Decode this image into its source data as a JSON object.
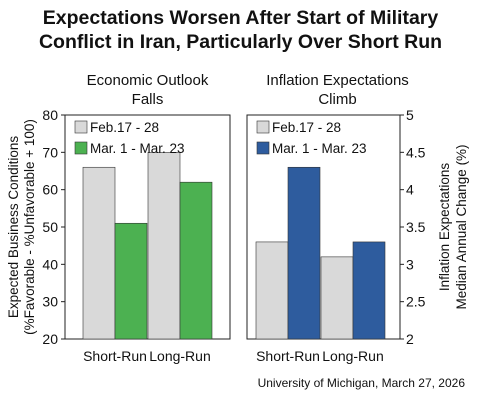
{
  "title_line1": "Expectations Worsen After Start of Military",
  "title_line2": "Conflict in Iran, Particularly Over Short Run",
  "source": "University of Michigan, March 27, 2026",
  "chart_data": [
    {
      "type": "bar",
      "title_line1": "Economic Outlook",
      "title_line2": "Falls",
      "ylabel_line1": "Expected Business Conditions",
      "ylabel_line2": "(%Favorable - %Unfavorable + 100)",
      "ylim": [
        20,
        80
      ],
      "yticks": [
        20,
        30,
        40,
        50,
        60,
        70,
        80
      ],
      "categories": [
        "Short-Run",
        "Long-Run"
      ],
      "legend_position": "top-left",
      "series": [
        {
          "name": "Feb.17 - 28",
          "color": "#d9d9d9",
          "values": [
            66,
            70
          ]
        },
        {
          "name": "Mar. 1 - Mar. 23",
          "color": "#4cb151",
          "values": [
            51,
            62
          ]
        }
      ]
    },
    {
      "type": "bar",
      "title_line1": "Inflation Expectations",
      "title_line2": "Climb",
      "ylabel_line1": "Inflation Expectations",
      "ylabel_line2": "Median Annual Change (%)",
      "ylim": [
        2,
        5
      ],
      "yticks": [
        "2",
        "2.5",
        "3",
        "3.5",
        "4",
        "4.5",
        "5"
      ],
      "categories": [
        "Short-Run",
        "Long-Run"
      ],
      "legend_position": "top-left",
      "series": [
        {
          "name": "Feb.17 - 28",
          "color": "#d9d9d9",
          "values": [
            3.3,
            3.1
          ]
        },
        {
          "name": "Mar. 1 - Mar. 23",
          "color": "#2e5c9e",
          "values": [
            4.3,
            3.3
          ]
        }
      ]
    }
  ]
}
